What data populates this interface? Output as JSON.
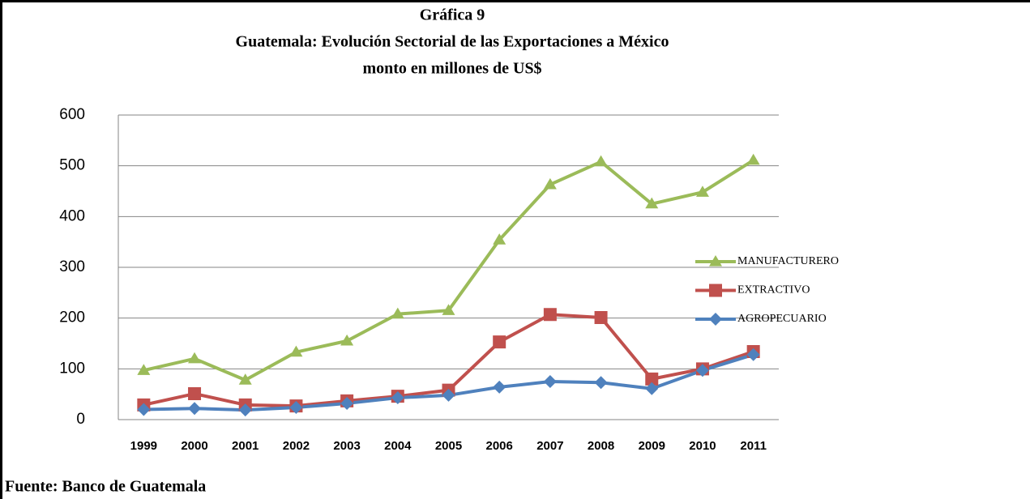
{
  "chart_data": {
    "type": "line",
    "title": "Gráfica 9",
    "subtitle": [
      "Guatemala: Evolución  Sectorial  de las Exportaciones a México",
      "monto en millones de  US$"
    ],
    "source": "Fuente: Banco de Guatemala",
    "categories": [
      "1999",
      "2000",
      "2001",
      "2002",
      "2003",
      "2004",
      "2005",
      "2006",
      "2007",
      "2008",
      "2009",
      "2010",
      "2011"
    ],
    "series": [
      {
        "name": "MANUFACTURERO",
        "color": "#9bbb59",
        "marker": "triangle",
        "values": [
          97,
          120,
          78,
          133,
          155,
          208,
          215,
          354,
          463,
          508,
          425,
          448,
          511
        ]
      },
      {
        "name": "EXTRACTIVO",
        "color": "#c0504d",
        "marker": "square",
        "values": [
          29,
          51,
          29,
          27,
          37,
          46,
          58,
          153,
          207,
          201,
          80,
          100,
          134
        ]
      },
      {
        "name": "AGROPECUARIO",
        "color": "#4f81bd",
        "marker": "diamond",
        "values": [
          20,
          22,
          19,
          24,
          32,
          43,
          48,
          64,
          75,
          73,
          61,
          97,
          128
        ]
      }
    ],
    "ylim": [
      0,
      600
    ],
    "yticks": [
      0,
      100,
      200,
      300,
      400,
      500,
      600
    ],
    "grid": true,
    "legend": "right"
  }
}
